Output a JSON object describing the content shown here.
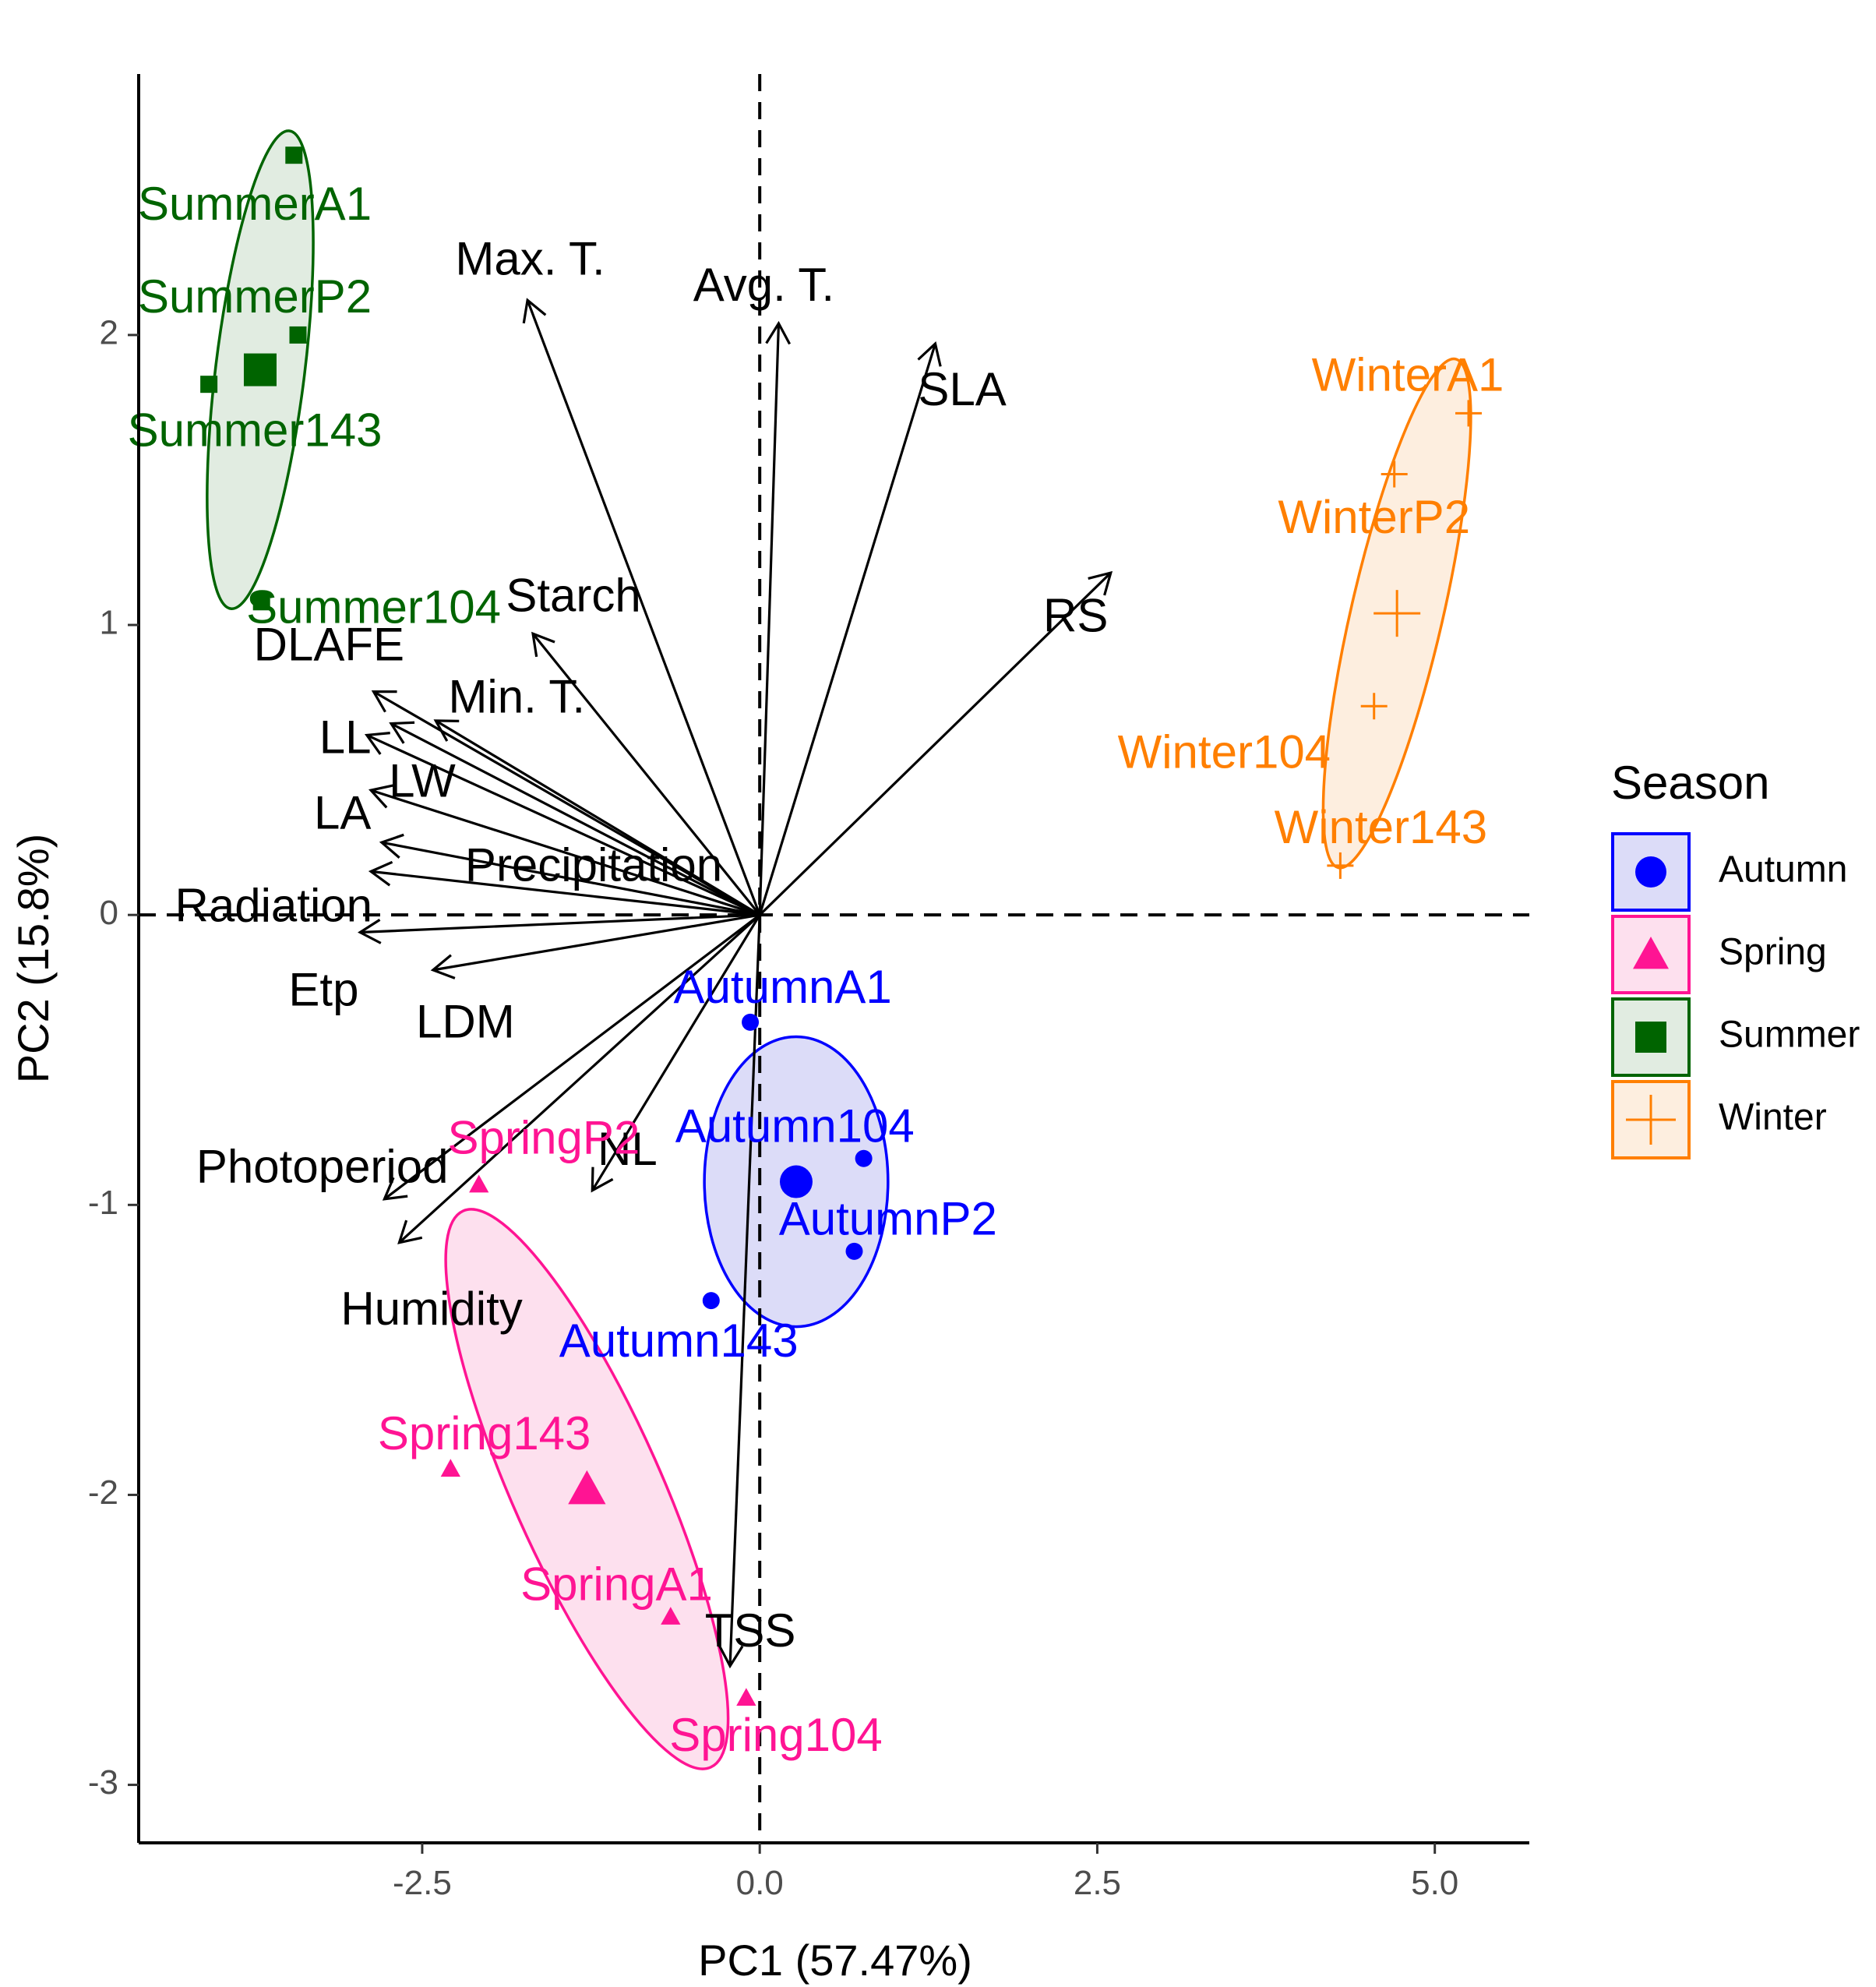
{
  "chart_data": {
    "type": "scatter",
    "subtype": "pca-biplot",
    "xlabel": "PC1 (57.47%)",
    "ylabel": "PC2 (15.8%)",
    "xlim": [
      -4.6,
      5.7
    ],
    "ylim": [
      -3.2,
      2.9
    ],
    "x_ticks": [
      {
        "value": -2.5,
        "label": "-2.5"
      },
      {
        "value": 0.0,
        "label": "0.0"
      },
      {
        "value": 2.5,
        "label": "2.5"
      },
      {
        "value": 5.0,
        "label": "5.0"
      }
    ],
    "y_ticks": [
      {
        "value": -3,
        "label": "-3"
      },
      {
        "value": -2,
        "label": "-2"
      },
      {
        "value": -1,
        "label": "-1"
      },
      {
        "value": 0,
        "label": "0"
      },
      {
        "value": 1,
        "label": "1"
      },
      {
        "value": 2,
        "label": "2"
      }
    ],
    "legend": {
      "title": "Season",
      "position": "right",
      "entries": [
        {
          "name": "Autumn",
          "color": "#0000ff",
          "fill": "#dcdcf8",
          "shape": "circle"
        },
        {
          "name": "Spring",
          "color": "#ff1493",
          "fill": "#fde0ee",
          "shape": "triangle"
        },
        {
          "name": "Summer",
          "color": "#006400",
          "fill": "#e1ece1",
          "shape": "square"
        },
        {
          "name": "Winter",
          "color": "#ff7f00",
          "fill": "#fdeedf",
          "shape": "plus"
        }
      ]
    },
    "groups": [
      {
        "name": "Summer",
        "color": "#006400",
        "fill": "#e1ece1",
        "shape": "square",
        "centroid": [
          -3.7,
          1.88
        ],
        "ellipse": {
          "cx": -3.7,
          "cy": 1.88,
          "rx": 0.33,
          "ry": 0.83,
          "angle": 7
        },
        "points": [
          {
            "x": -3.45,
            "y": 2.62,
            "label": "SummerA1",
            "lx": -3.74,
            "ly": 2.44
          },
          {
            "x": -3.42,
            "y": 2.0,
            "label": "SummerP2",
            "lx": -3.74,
            "ly": 2.12
          },
          {
            "x": -4.08,
            "y": 1.83,
            "label": "Summer143",
            "lx": -3.74,
            "ly": 1.66
          },
          {
            "x": -3.69,
            "y": 1.08,
            "label": "Summer104",
            "lx": -2.86,
            "ly": 1.05
          }
        ]
      },
      {
        "name": "Winter",
        "color": "#ff7f00",
        "fill": "#fdeedf",
        "shape": "plus",
        "centroid": [
          4.72,
          1.04
        ],
        "ellipse": {
          "cx": 4.72,
          "cy": 1.04,
          "rx": 0.34,
          "ry": 0.9,
          "angle": 13
        },
        "points": [
          {
            "x": 5.25,
            "y": 1.73,
            "label": "WinterA1",
            "lx": 4.8,
            "ly": 1.85
          },
          {
            "x": 4.7,
            "y": 1.52,
            "label": "WinterP2",
            "lx": 4.55,
            "ly": 1.36
          },
          {
            "x": 4.55,
            "y": 0.72,
            "label": "Winter104",
            "lx": 3.44,
            "ly": 0.55
          },
          {
            "x": 4.3,
            "y": 0.17,
            "label": "Winter143",
            "lx": 4.6,
            "ly": 0.29
          }
        ]
      },
      {
        "name": "Autumn",
        "color": "#0000ff",
        "fill": "#dcdcf8",
        "shape": "circle",
        "centroid": [
          0.27,
          -0.92
        ],
        "ellipse": {
          "cx": 0.27,
          "cy": -0.92,
          "rx": 0.68,
          "ry": 0.5,
          "angle": 0
        },
        "points": [
          {
            "x": -0.07,
            "y": -0.37,
            "label": "AutumnA1",
            "lx": 0.17,
            "ly": -0.26
          },
          {
            "x": 0.77,
            "y": -0.84,
            "label": "Autumn104",
            "lx": 0.26,
            "ly": -0.74
          },
          {
            "x": 0.7,
            "y": -1.16,
            "label": "AutumnP2",
            "lx": 0.95,
            "ly": -1.06
          },
          {
            "x": -0.36,
            "y": -1.33,
            "label": "Autumn143",
            "lx": -0.6,
            "ly": -1.48
          }
        ]
      },
      {
        "name": "Spring",
        "color": "#ff1493",
        "fill": "#fde0ee",
        "shape": "triangle",
        "centroid": [
          -1.28,
          -1.98
        ],
        "ellipse": {
          "cx": -1.28,
          "cy": -1.98,
          "rx": 0.55,
          "ry": 1.05,
          "angle": -24
        },
        "points": [
          {
            "x": -2.08,
            "y": -0.93,
            "label": "SpringP2",
            "lx": -1.6,
            "ly": -0.78
          },
          {
            "x": -2.29,
            "y": -1.91,
            "label": "Spring143",
            "lx": -2.04,
            "ly": -1.8
          },
          {
            "x": -0.66,
            "y": -2.42,
            "label": "SpringA1",
            "lx": -1.06,
            "ly": -2.32
          },
          {
            "x": -0.1,
            "y": -2.7,
            "label": "Spring104",
            "lx": 0.12,
            "ly": -2.84
          }
        ]
      }
    ],
    "variables": [
      {
        "name": "Max. T.",
        "x": -1.72,
        "y": 2.12,
        "lx": -1.7,
        "ly": 2.25
      },
      {
        "name": "Avg. T.",
        "x": 0.14,
        "y": 2.04,
        "lx": 0.03,
        "ly": 2.16
      },
      {
        "name": "SLA",
        "x": 1.3,
        "y": 1.97,
        "lx": 1.5,
        "ly": 1.8
      },
      {
        "name": "RS",
        "x": 2.6,
        "y": 1.18,
        "lx": 2.34,
        "ly": 1.02
      },
      {
        "name": "Starch",
        "x": -1.68,
        "y": 0.97,
        "lx": -1.38,
        "ly": 1.09
      },
      {
        "name": "DLAFE",
        "x": -2.86,
        "y": 0.77,
        "lx": -3.19,
        "ly": 0.92
      },
      {
        "name": "Min. T.",
        "x": -2.4,
        "y": 0.67,
        "lx": -1.8,
        "ly": 0.74
      },
      {
        "name": "LL",
        "x": -2.73,
        "y": 0.66,
        "lx": -3.07,
        "ly": 0.6
      },
      {
        "name": "LW",
        "x": -2.91,
        "y": 0.62,
        "lx": -2.5,
        "ly": 0.45
      },
      {
        "name": "LA",
        "x": -2.88,
        "y": 0.43,
        "lx": -3.09,
        "ly": 0.34
      },
      {
        "name": "Precipitation",
        "x": -2.8,
        "y": 0.25,
        "lx": -1.23,
        "ly": 0.16
      },
      {
        "name": "Radiation",
        "x": -2.88,
        "y": 0.15,
        "lx": -3.6,
        "ly": 0.02
      },
      {
        "name": "Etp",
        "x": -2.96,
        "y": -0.06,
        "lx": -3.23,
        "ly": -0.27
      },
      {
        "name": "LDM",
        "x": -2.42,
        "y": -0.19,
        "lx": -2.18,
        "ly": -0.38
      },
      {
        "name": "NL",
        "x": -1.24,
        "y": -0.95,
        "lx": -0.98,
        "ly": -0.82
      },
      {
        "name": "Photoperiod",
        "x": -2.78,
        "y": -0.98,
        "lx": -3.24,
        "ly": -0.88
      },
      {
        "name": "Humidity",
        "x": -2.67,
        "y": -1.13,
        "lx": -2.43,
        "ly": -1.37
      },
      {
        "name": "TSS",
        "x": -0.22,
        "y": -2.59,
        "lx": -0.07,
        "ly": -2.48
      }
    ]
  }
}
